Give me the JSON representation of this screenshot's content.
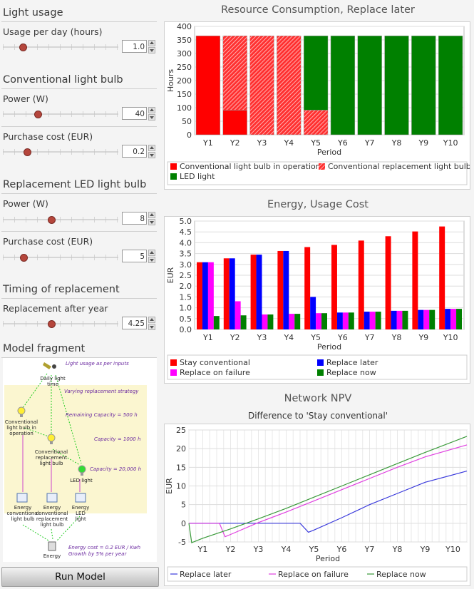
{
  "left": {
    "light_usage": {
      "title": "Light usage",
      "usage_label": "Usage per day (hours)",
      "usage_value": "1.0",
      "usage_fraction": 0.17
    },
    "conventional": {
      "title": "Conventional light bulb",
      "power_label": "Power (W)",
      "power_value": "40",
      "power_fraction": 0.3,
      "cost_label": "Purchase cost (EUR)",
      "cost_value": "0.2",
      "cost_fraction": 0.21
    },
    "led": {
      "title": "Replacement LED light bulb",
      "power_label": "Power (W)",
      "power_value": "8",
      "power_fraction": 0.42,
      "cost_label": "Purchase cost (EUR)",
      "cost_value": "5",
      "cost_fraction": 0.18
    },
    "timing": {
      "title": "Timing of replacement",
      "replace_label": "Replacement after year",
      "replace_value": "4.25",
      "replace_fraction": 0.42
    },
    "model": {
      "title": "Model fragment",
      "daily": "Daily light time",
      "usage_note": "Light usage as per inputs",
      "strategy_note": "Varying replacement strategy",
      "remaining_note": "Remaining Capacity = 500 h",
      "cap1000": "Capacity = 1000 h",
      "cap20000": "Capacity = 20,000 h",
      "conv_op": "Conventional light bulb in operation",
      "conv_repl": "Conventional replacement light bulb",
      "led": "LED light",
      "en_conv": "Energy conventional light bulb",
      "en_repl": "Energy conventional replacement light bulb",
      "en_led": "Energy LED light",
      "energy": "Energy",
      "energy_note": "Energy cost = 0.2 EUR / Kwh Growth by 5% per year"
    },
    "run_label": "Run Model"
  },
  "colors": {
    "red": "#ff0000",
    "green": "#008000",
    "blue": "#0000ff",
    "magenta": "#ff00ff",
    "npv_blue": "#3a3adc",
    "npv_magenta": "#e040e0",
    "npv_green": "#3a9a3a"
  },
  "chart_data": [
    {
      "type": "bar",
      "title": "Resource Consumption, Replace later",
      "xlabel": "Period",
      "ylabel": "Hours",
      "categories": [
        "Y1",
        "Y2",
        "Y3",
        "Y4",
        "Y5",
        "Y6",
        "Y7",
        "Y8",
        "Y9",
        "Y10"
      ],
      "ylim": [
        0,
        400
      ],
      "yticks": [
        0,
        50,
        100,
        150,
        200,
        250,
        300,
        350,
        400
      ],
      "stacked": true,
      "series": [
        {
          "name": "Conventional light bulb in operation",
          "values": [
            365,
            91,
            0,
            0,
            0,
            0,
            0,
            0,
            0,
            0
          ]
        },
        {
          "name": "Conventional replacement light bulb",
          "values": [
            0,
            274,
            365,
            365,
            91,
            0,
            0,
            0,
            0,
            0
          ]
        },
        {
          "name": "LED light",
          "values": [
            0,
            0,
            0,
            0,
            274,
            365,
            365,
            365,
            365,
            365
          ]
        }
      ],
      "legend_placement": "bottom"
    },
    {
      "type": "bar",
      "title": "Energy, Usage Cost",
      "xlabel": "Period",
      "ylabel": "EUR",
      "categories": [
        "Y1",
        "Y2",
        "Y3",
        "Y4",
        "Y5",
        "Y6",
        "Y7",
        "Y8",
        "Y9",
        "Y10"
      ],
      "ylim": [
        0,
        5
      ],
      "yticks": [
        "0.0",
        "0.5",
        "1.0",
        "1.5",
        "2.0",
        "2.5",
        "3.0",
        "3.5",
        "4.0",
        "4.5",
        "5.0"
      ],
      "series": [
        {
          "name": "Stay conventional",
          "values": [
            3.1,
            3.28,
            3.45,
            3.62,
            3.8,
            3.9,
            4.1,
            4.3,
            4.52,
            4.75
          ]
        },
        {
          "name": "Replace later",
          "values": [
            3.1,
            3.28,
            3.45,
            3.62,
            1.5,
            0.78,
            0.82,
            0.86,
            0.9,
            0.95
          ]
        },
        {
          "name": "Replace on failure",
          "values": [
            3.1,
            1.3,
            0.69,
            0.72,
            0.75,
            0.78,
            0.82,
            0.86,
            0.9,
            0.95
          ]
        },
        {
          "name": "Replace now",
          "values": [
            0.62,
            0.65,
            0.69,
            0.72,
            0.75,
            0.78,
            0.82,
            0.86,
            0.9,
            0.95
          ]
        }
      ],
      "legend_placement": "bottom"
    },
    {
      "type": "line",
      "title": "Network NPV",
      "subtitle": "Difference to 'Stay conventional'",
      "xlabel": "Period",
      "ylabel": "EUR",
      "categories": [
        "Y1",
        "Y2",
        "Y3",
        "Y4",
        "Y5",
        "Y6",
        "Y7",
        "Y8",
        "Y9",
        "Y10"
      ],
      "xlim": [
        0.5,
        10.5
      ],
      "ylim": [
        -5,
        25
      ],
      "yticks": [
        -5,
        0,
        5,
        10,
        15,
        20,
        25
      ],
      "series": [
        {
          "name": "Replace later",
          "points": [
            [
              0.5,
              0
            ],
            [
              4.5,
              0
            ],
            [
              4.8,
              -2.4
            ],
            [
              5.0,
              -1.8
            ],
            [
              6.0,
              1.5
            ],
            [
              7.0,
              5.0
            ],
            [
              8.0,
              8.0
            ],
            [
              9.0,
              11.0
            ],
            [
              10.5,
              14.0
            ]
          ]
        },
        {
          "name": "Replace on failure",
          "points": [
            [
              0.5,
              0
            ],
            [
              1.6,
              0
            ],
            [
              1.8,
              -3.6
            ],
            [
              2.0,
              -3.0
            ],
            [
              3.0,
              0.2
            ],
            [
              4.0,
              3.0
            ],
            [
              5.0,
              6.0
            ],
            [
              6.0,
              9.0
            ],
            [
              7.0,
              12.0
            ],
            [
              8.0,
              15.0
            ],
            [
              9.0,
              17.8
            ],
            [
              10.5,
              21.0
            ]
          ]
        },
        {
          "name": "Replace now",
          "points": [
            [
              0.5,
              0
            ],
            [
              0.6,
              -5.2
            ],
            [
              1.0,
              -4.0
            ],
            [
              2.0,
              -1.5
            ],
            [
              3.0,
              1.2
            ],
            [
              4.0,
              4.0
            ],
            [
              5.0,
              7.0
            ],
            [
              6.0,
              10.0
            ],
            [
              7.0,
              13.0
            ],
            [
              8.0,
              16.0
            ],
            [
              9.0,
              19.0
            ],
            [
              10.5,
              23.3
            ]
          ]
        }
      ],
      "legend_placement": "bottom"
    }
  ]
}
